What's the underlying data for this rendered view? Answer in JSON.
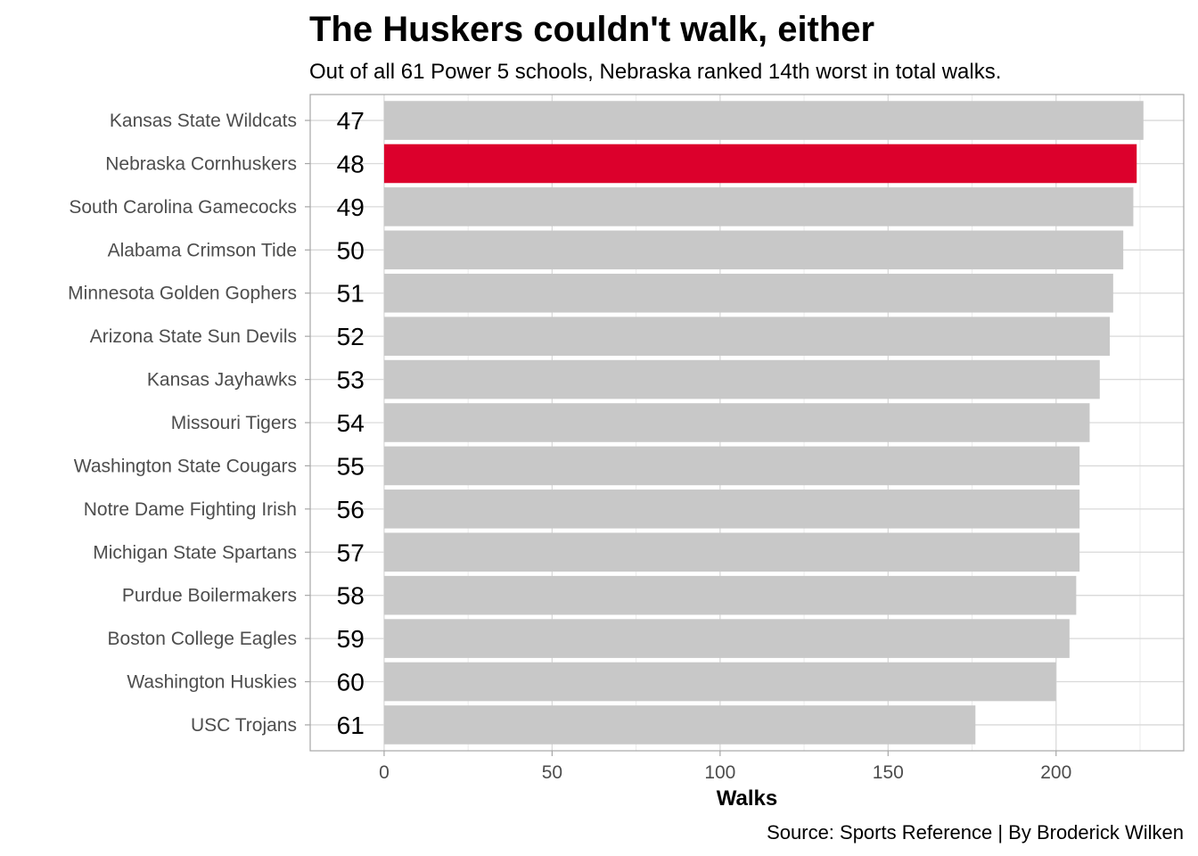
{
  "chart_data": {
    "type": "bar",
    "orientation": "horizontal",
    "title": "The Huskers couldn't walk, either",
    "subtitle": "Out of all 61 Power 5 schools, Nebraska ranked 14th worst in total walks.",
    "xlabel": "Walks",
    "ylabel": "",
    "caption": "Source: Sports Reference | By Broderick Wilken",
    "xlim": [
      -22,
      238
    ],
    "xticks": [
      0,
      50,
      100,
      150,
      200
    ],
    "grid": true,
    "categories": [
      "Kansas State Wildcats",
      "Nebraska Cornhuskers",
      "South Carolina Gamecocks",
      "Alabama Crimson Tide",
      "Minnesota Golden Gophers",
      "Arizona State Sun Devils",
      "Kansas Jayhawks",
      "Missouri Tigers",
      "Washington State Cougars",
      "Notre Dame Fighting Irish",
      "Michigan State Spartans",
      "Purdue Boilermakers",
      "Boston College Eagles",
      "Washington Huskies",
      "USC Trojans"
    ],
    "ranks": [
      "47",
      "48",
      "49",
      "50",
      "51",
      "52",
      "53",
      "54",
      "55",
      "56",
      "57",
      "58",
      "59",
      "60",
      "61"
    ],
    "values": [
      226,
      224,
      223,
      220,
      217,
      216,
      213,
      210,
      207,
      207,
      207,
      206,
      204,
      200,
      176
    ],
    "highlight": "Nebraska Cornhuskers",
    "colors": {
      "default": "#c8c8c8",
      "highlight": "#dc002c"
    }
  }
}
